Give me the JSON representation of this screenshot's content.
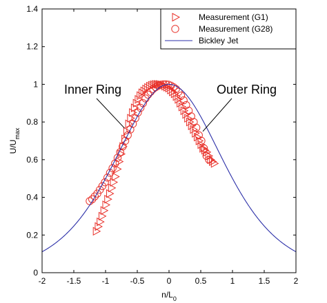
{
  "chart_data": {
    "type": "scatter",
    "xlabel_main": "n/L",
    "xlabel_sub": "0",
    "ylabel_main": "U/U",
    "ylabel_sub": "max",
    "xlim": [
      -2,
      2
    ],
    "ylim": [
      0,
      1.4
    ],
    "x_ticks": [
      "-2",
      "-1.5",
      "-1",
      "-0.5",
      "0",
      "0.5",
      "1",
      "1.5",
      "2"
    ],
    "y_ticks": [
      "0",
      "0.2",
      "0.4",
      "0.6",
      "0.8",
      "1",
      "1.2",
      "1.4"
    ],
    "grid": false,
    "legend_position": "top-right",
    "colors": {
      "markers": "#e8312a",
      "curve": "#2b2fa8"
    },
    "series": [
      {
        "name": "Measurement (G1)",
        "marker": "triangle-right",
        "x": [
          -1.15,
          -1.12,
          -1.09,
          -1.06,
          -1.03,
          -1.0,
          -0.97,
          -0.94,
          -0.91,
          -0.88,
          -0.85,
          -0.82,
          -0.79,
          -0.76,
          -0.73,
          -0.7,
          -0.67,
          -0.64,
          -0.61,
          -0.58,
          -0.55,
          -0.52,
          -0.49,
          -0.46,
          -0.43,
          -0.4,
          -0.37,
          -0.34,
          -0.31,
          -0.28,
          -0.25,
          -0.22,
          -0.19,
          -0.16,
          -0.13,
          -0.1,
          -0.07,
          -0.04,
          -0.01,
          0.02,
          0.05,
          0.08,
          0.11,
          0.14,
          0.17,
          0.2,
          0.23,
          0.26,
          0.29,
          0.32,
          0.35,
          0.38,
          0.41,
          0.44,
          0.47,
          0.5,
          0.53,
          0.56,
          0.59,
          0.62,
          0.65,
          0.68,
          0.71
        ],
        "y": [
          0.22,
          0.245,
          0.27,
          0.3,
          0.33,
          0.36,
          0.39,
          0.42,
          0.45,
          0.48,
          0.51,
          0.55,
          0.59,
          0.63,
          0.67,
          0.71,
          0.75,
          0.79,
          0.82,
          0.85,
          0.875,
          0.9,
          0.92,
          0.94,
          0.955,
          0.965,
          0.975,
          0.983,
          0.99,
          0.995,
          0.998,
          1.0,
          1.0,
          1.0,
          0.998,
          0.995,
          0.99,
          0.985,
          0.98,
          0.97,
          0.96,
          0.95,
          0.935,
          0.92,
          0.9,
          0.88,
          0.86,
          0.84,
          0.82,
          0.8,
          0.78,
          0.76,
          0.74,
          0.72,
          0.7,
          0.68,
          0.66,
          0.65,
          0.64,
          0.62,
          0.6,
          0.59,
          0.58
        ]
      },
      {
        "name": "Measurement (G28)",
        "marker": "circle",
        "x": [
          -1.25,
          -1.21,
          -1.17,
          -1.13,
          -1.09,
          -1.05,
          -1.01,
          -0.97,
          -0.93,
          -0.89,
          -0.85,
          -0.81,
          -0.77,
          -0.73,
          -0.69,
          -0.65,
          -0.61,
          -0.57,
          -0.53,
          -0.49,
          -0.45,
          -0.41,
          -0.37,
          -0.33,
          -0.29,
          -0.25,
          -0.21,
          -0.17,
          -0.13,
          -0.09,
          -0.05,
          -0.01,
          0.03,
          0.07,
          0.11,
          0.15,
          0.19,
          0.23,
          0.27,
          0.31,
          0.35,
          0.39,
          0.43,
          0.47,
          0.51,
          0.55,
          0.59,
          0.63
        ],
        "y": [
          0.38,
          0.39,
          0.405,
          0.42,
          0.44,
          0.46,
          0.48,
          0.505,
          0.53,
          0.555,
          0.58,
          0.61,
          0.64,
          0.67,
          0.7,
          0.73,
          0.76,
          0.79,
          0.82,
          0.85,
          0.875,
          0.9,
          0.925,
          0.945,
          0.96,
          0.975,
          0.985,
          0.993,
          0.998,
          1.0,
          1.0,
          0.998,
          0.993,
          0.985,
          0.975,
          0.96,
          0.94,
          0.915,
          0.89,
          0.86,
          0.83,
          0.8,
          0.77,
          0.73,
          0.7,
          0.66,
          0.62,
          0.6
        ]
      },
      {
        "name": "Bickley Jet",
        "type": "line",
        "function": "1/cosh^2(0.8814 * x)",
        "x_range": [
          -2,
          2
        ]
      }
    ],
    "annotations": [
      {
        "text": "Inner Ring",
        "arrow_to": [
          -0.68,
          0.76
        ]
      },
      {
        "text": "Outer Ring",
        "arrow_to": [
          0.5,
          0.75
        ]
      }
    ]
  }
}
